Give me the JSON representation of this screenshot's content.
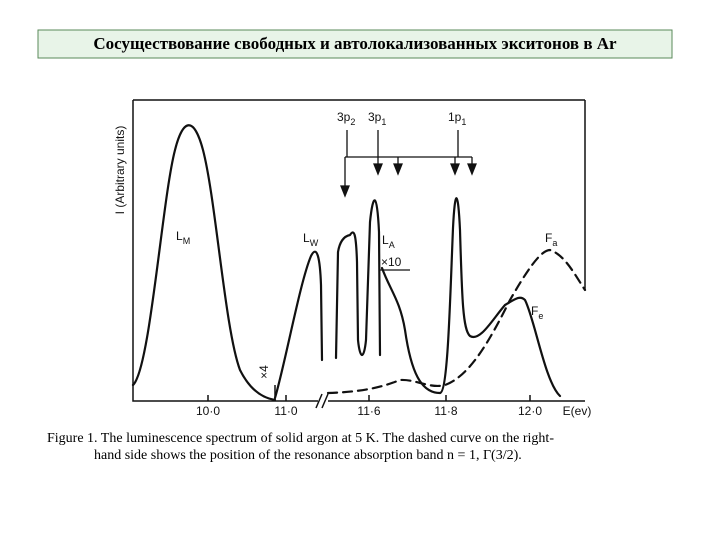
{
  "header": {
    "title": "Сосуществование свободных и автолокализованных экситонов в Ar"
  },
  "figure": {
    "y_axis_label": "I (Arbitrary units)",
    "x_ticks": [
      "10·0",
      "11·0",
      "11·6",
      "11·8",
      "12·0"
    ],
    "x_axis_label": "E(ev)",
    "scale_marks": [
      "×4",
      "×10"
    ],
    "curve_labels": [
      {
        "text": "L",
        "sub": "M"
      },
      {
        "text": "L",
        "sub": "W"
      },
      {
        "text": "L",
        "sub": "A"
      },
      {
        "text": "F",
        "sub": "a"
      },
      {
        "text": "F",
        "sub": "e"
      }
    ],
    "arrow_labels": [
      {
        "text": "3p",
        "sub": "2"
      },
      {
        "text": "3p",
        "sub": "1"
      },
      {
        "text": "1p",
        "sub": "1"
      }
    ]
  },
  "caption": {
    "lines": [
      "Figure 1.   The luminescence spectrum of solid argon at 5 K. The dashed curve on the right-",
      "hand side shows the position of the resonance absorption band n = 1, Γ(3/2)."
    ]
  }
}
